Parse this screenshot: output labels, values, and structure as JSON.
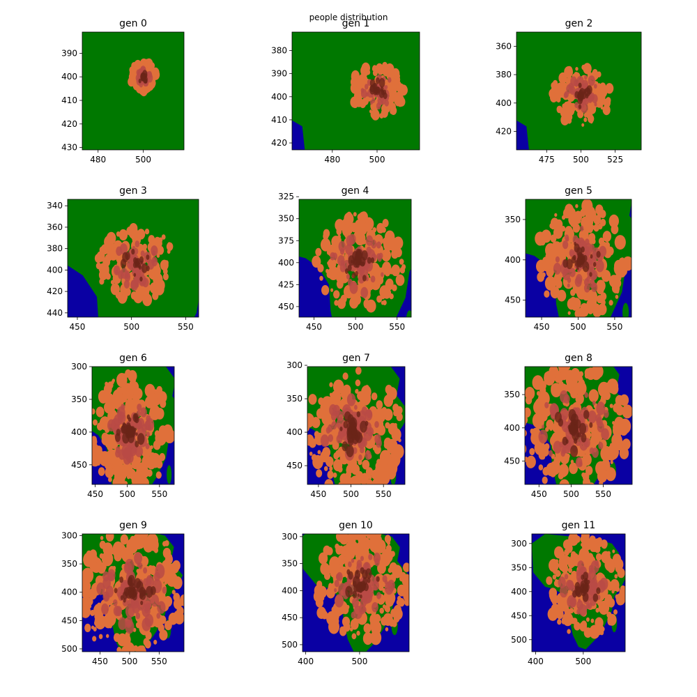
{
  "figure": {
    "suptitle": "people distribution"
  },
  "colors": {
    "ocean": "#0a00a3",
    "land": "#007800",
    "people_light": "#e0703a",
    "people_mid": "#b84a45",
    "people_dark": "#6a2418"
  },
  "chart_data": [
    {
      "type": "heatmap",
      "title": "gen 0",
      "xticks": [
        "480",
        "500"
      ],
      "yticks": [
        "390",
        "400",
        "410",
        "420",
        "430"
      ],
      "xlim": [
        473,
        518
      ],
      "ylim": [
        431,
        381
      ],
      "spread": 0.18,
      "ocean": "none",
      "cx": 500,
      "cy": 400
    },
    {
      "type": "heatmap",
      "title": "gen 1",
      "xticks": [
        "480",
        "500"
      ],
      "yticks": [
        "380",
        "390",
        "400",
        "410",
        "420"
      ],
      "xlim": [
        462,
        519
      ],
      "ylim": [
        423,
        372
      ],
      "spread": 0.3,
      "ocean": "sw-corner",
      "cx": 500,
      "cy": 397
    },
    {
      "type": "heatmap",
      "title": "gen 2",
      "xticks": [
        "475",
        "500",
        "525"
      ],
      "yticks": [
        "360",
        "380",
        "400",
        "420"
      ],
      "xlim": [
        453,
        544
      ],
      "ylim": [
        433,
        350
      ],
      "spread": 0.33,
      "ocean": "sw-corner",
      "cx": 500,
      "cy": 395
    },
    {
      "type": "heatmap",
      "title": "gen 3",
      "xticks": [
        "450",
        "500",
        "550"
      ],
      "yticks": [
        "340",
        "360",
        "380",
        "400",
        "420",
        "440"
      ],
      "xlim": [
        441,
        562
      ],
      "ylim": [
        444,
        334
      ],
      "spread": 0.42,
      "ocean": "coasts",
      "cx": 505,
      "cy": 395
    },
    {
      "type": "heatmap",
      "title": "gen 4",
      "xticks": [
        "450",
        "500",
        "550"
      ],
      "yticks": [
        "325",
        "350",
        "375",
        "400",
        "425",
        "450"
      ],
      "xlim": [
        432,
        567
      ],
      "ylim": [
        462,
        328
      ],
      "spread": 0.55,
      "ocean": "coasts",
      "cx": 505,
      "cy": 400
    },
    {
      "type": "heatmap",
      "title": "gen 5",
      "xticks": [
        "450",
        "500",
        "550"
      ],
      "yticks": [
        "350",
        "400",
        "450"
      ],
      "xlim": [
        428,
        573
      ],
      "ylim": [
        471,
        325
      ],
      "spread": 0.62,
      "ocean": "coasts",
      "cx": 505,
      "cy": 400
    },
    {
      "type": "heatmap",
      "title": "gen 6",
      "xticks": [
        "450",
        "500",
        "550"
      ],
      "yticks": [
        "300",
        "350",
        "400",
        "450"
      ],
      "xlim": [
        445,
        573
      ],
      "ylim": [
        480,
        300
      ],
      "spread": 0.68,
      "ocean": "coasts",
      "cx": 505,
      "cy": 400
    },
    {
      "type": "heatmap",
      "title": "gen 7",
      "xticks": [
        "450",
        "500",
        "550"
      ],
      "yticks": [
        "300",
        "350",
        "400",
        "450"
      ],
      "xlim": [
        433,
        583
      ],
      "ylim": [
        478,
        302
      ],
      "spread": 0.7,
      "ocean": "coasts",
      "cx": 505,
      "cy": 400
    },
    {
      "type": "heatmap",
      "title": "gen 8",
      "xticks": [
        "450",
        "500",
        "550"
      ],
      "yticks": [
        "350",
        "400",
        "450"
      ],
      "xlim": [
        428,
        595
      ],
      "ylim": [
        485,
        308
      ],
      "spread": 0.72,
      "ocean": "coasts",
      "cx": 505,
      "cy": 400
    },
    {
      "type": "heatmap",
      "title": "gen 9",
      "xticks": [
        "450",
        "500",
        "550"
      ],
      "yticks": [
        "300",
        "350",
        "400",
        "450",
        "500"
      ],
      "xlim": [
        420,
        592
      ],
      "ylim": [
        505,
        297
      ],
      "spread": 0.74,
      "ocean": "continent",
      "cx": 505,
      "cy": 400
    },
    {
      "type": "heatmap",
      "title": "gen 10",
      "xticks": [
        "400",
        "500"
      ],
      "yticks": [
        "300",
        "350",
        "400",
        "450",
        "500"
      ],
      "xlim": [
        394,
        592
      ],
      "ylim": [
        513,
        295
      ],
      "spread": 0.62,
      "ocean": "continent",
      "cx": 505,
      "cy": 390
    },
    {
      "type": "heatmap",
      "title": "gen 11",
      "xticks": [
        "400",
        "500"
      ],
      "yticks": [
        "300",
        "350",
        "400",
        "450",
        "500"
      ],
      "xlim": [
        392,
        588
      ],
      "ylim": [
        525,
        280
      ],
      "spread": 0.58,
      "ocean": "continent",
      "cx": 505,
      "cy": 390
    }
  ]
}
